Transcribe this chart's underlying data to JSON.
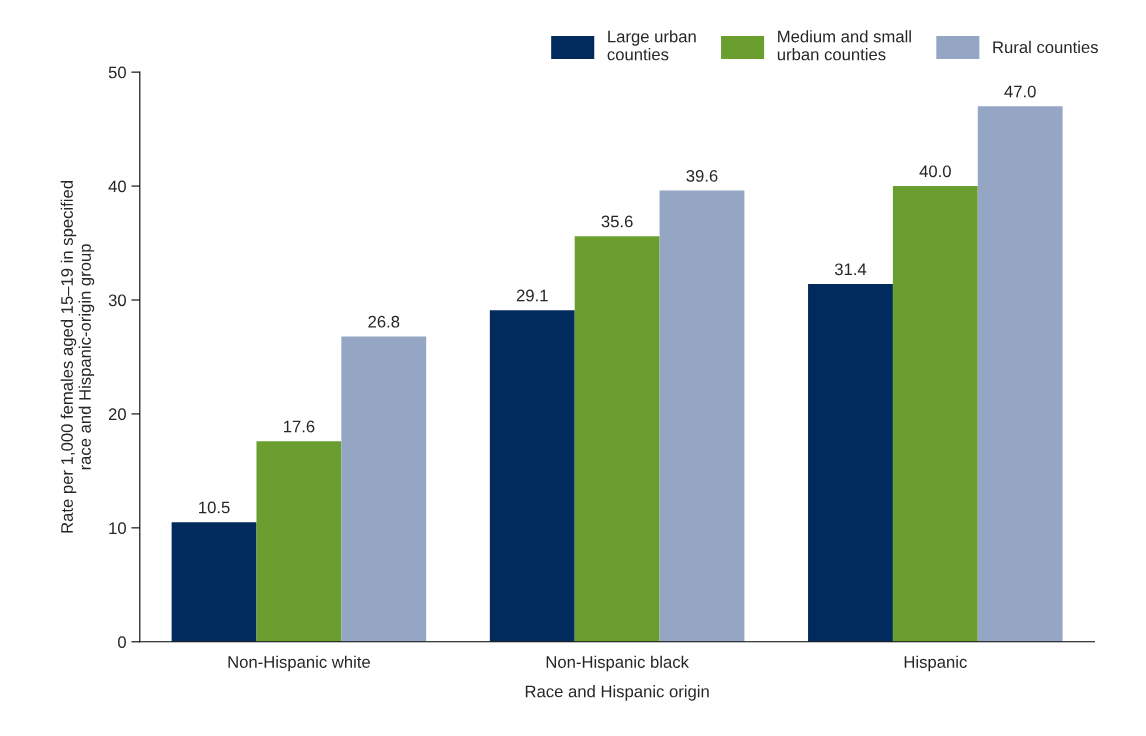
{
  "chart_data": {
    "type": "bar",
    "xlabel": "Race and Hispanic origin",
    "ylabel": "Rate per 1,000 females aged 15–19 in specified\nrace and Hispanic-origin group",
    "categories": [
      "Non-Hispanic white",
      "Non-Hispanic black",
      "Hispanic"
    ],
    "series": [
      {
        "name": "Large urban\ncounties",
        "color": "#002b5c",
        "values": [
          10.5,
          29.1,
          31.4
        ],
        "value_labels": [
          "10.5",
          "29.1",
          "31.4"
        ]
      },
      {
        "name": "Medium and small\nurban counties",
        "color": "#6a9f2f",
        "values": [
          17.6,
          35.6,
          40.0
        ],
        "value_labels": [
          "17.6",
          "35.6",
          "40.0"
        ]
      },
      {
        "name": "Rural counties",
        "color": "#94a6c4",
        "values": [
          26.8,
          39.6,
          47.0
        ],
        "value_labels": [
          "26.8",
          "39.6",
          "47.0"
        ]
      }
    ],
    "ylim": [
      0,
      50
    ],
    "yticks": [
      0,
      10,
      20,
      30,
      40,
      50
    ],
    "grid": false,
    "legend": "top right"
  }
}
